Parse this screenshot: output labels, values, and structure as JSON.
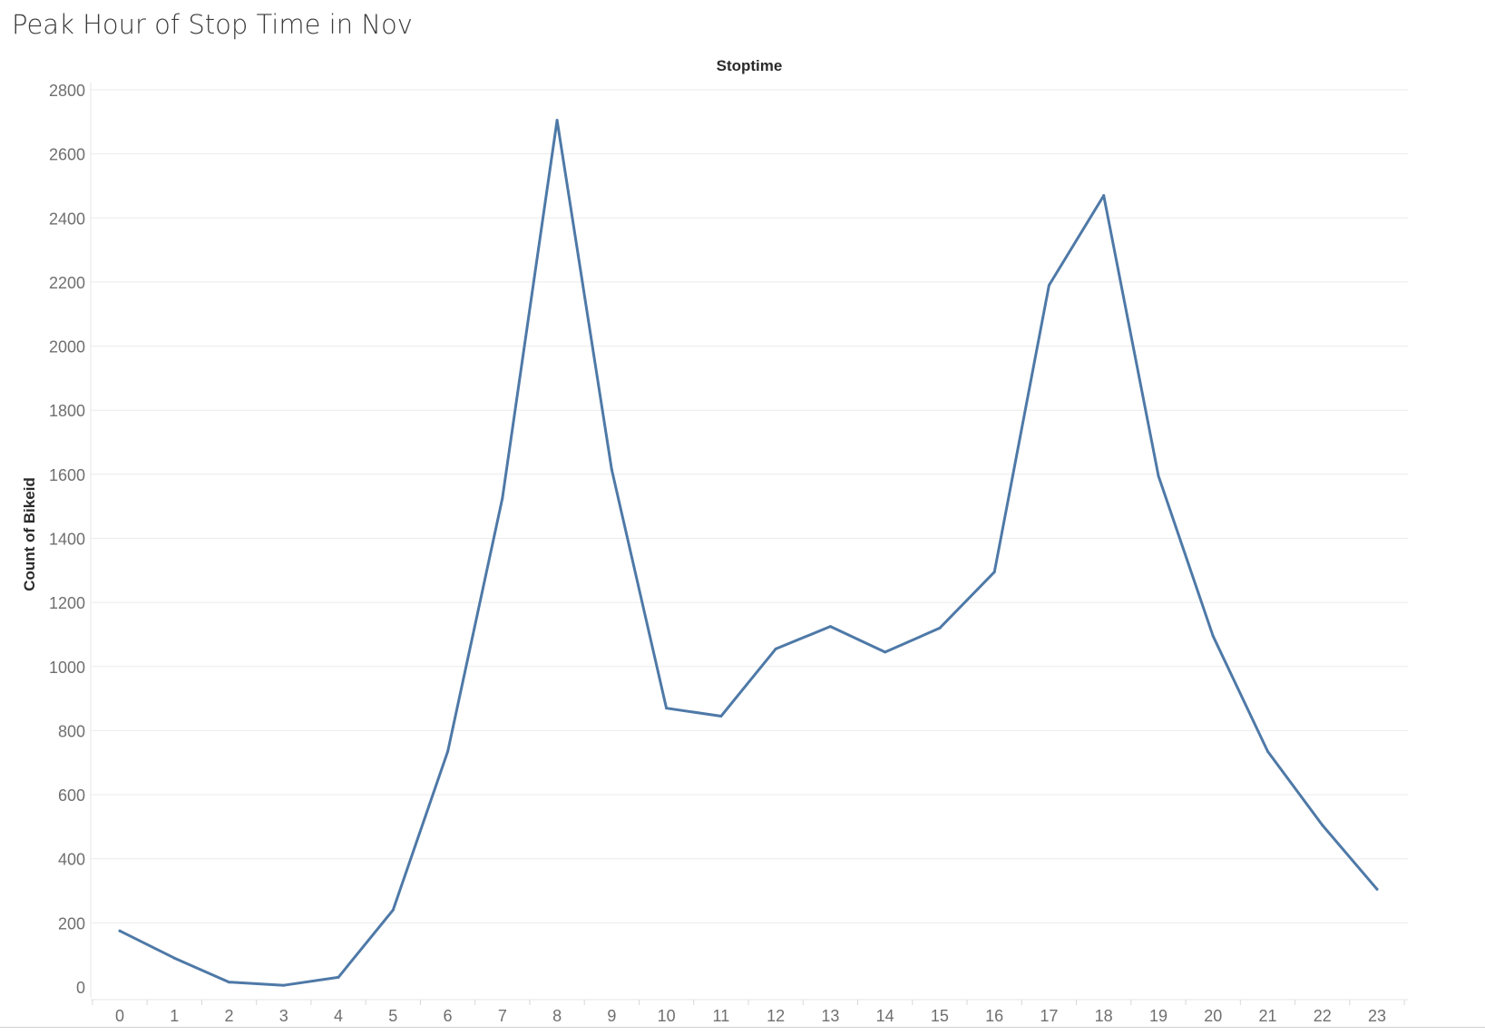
{
  "title": "Peak Hour of Stop Time in Nov",
  "chart_data": {
    "type": "line",
    "column_header": "Stoptime",
    "ylabel": "Count of Bikeid",
    "x": [
      0,
      1,
      2,
      3,
      4,
      5,
      6,
      7,
      8,
      9,
      10,
      11,
      12,
      13,
      14,
      15,
      16,
      17,
      18,
      19,
      20,
      21,
      22,
      23
    ],
    "x_tick_labels": [
      "0",
      "1",
      "2",
      "3",
      "4",
      "5",
      "6",
      "7",
      "8",
      "9",
      "10",
      "11",
      "12",
      "13",
      "14",
      "15",
      "16",
      "17",
      "18",
      "19",
      "20",
      "21",
      "22",
      "23"
    ],
    "y_ticks": [
      0,
      200,
      400,
      600,
      800,
      1000,
      1200,
      1400,
      1600,
      1800,
      2000,
      2200,
      2400,
      2600,
      2800
    ],
    "ylim": [
      0,
      2800
    ],
    "grid": "horizontal",
    "series": [
      {
        "values": [
          175,
          90,
          15,
          5,
          30,
          240,
          735,
          1525,
          2705,
          1615,
          870,
          845,
          1055,
          1125,
          1045,
          1120,
          1295,
          2190,
          2470,
          1595,
          1095,
          735,
          505,
          305
        ],
        "color": "#4e79a7"
      }
    ]
  },
  "colors": {
    "line": "#4e79a7",
    "gridline": "#ebebeb",
    "tick_text": "#6f6f6f",
    "axis_title": "#2a2a2a"
  }
}
